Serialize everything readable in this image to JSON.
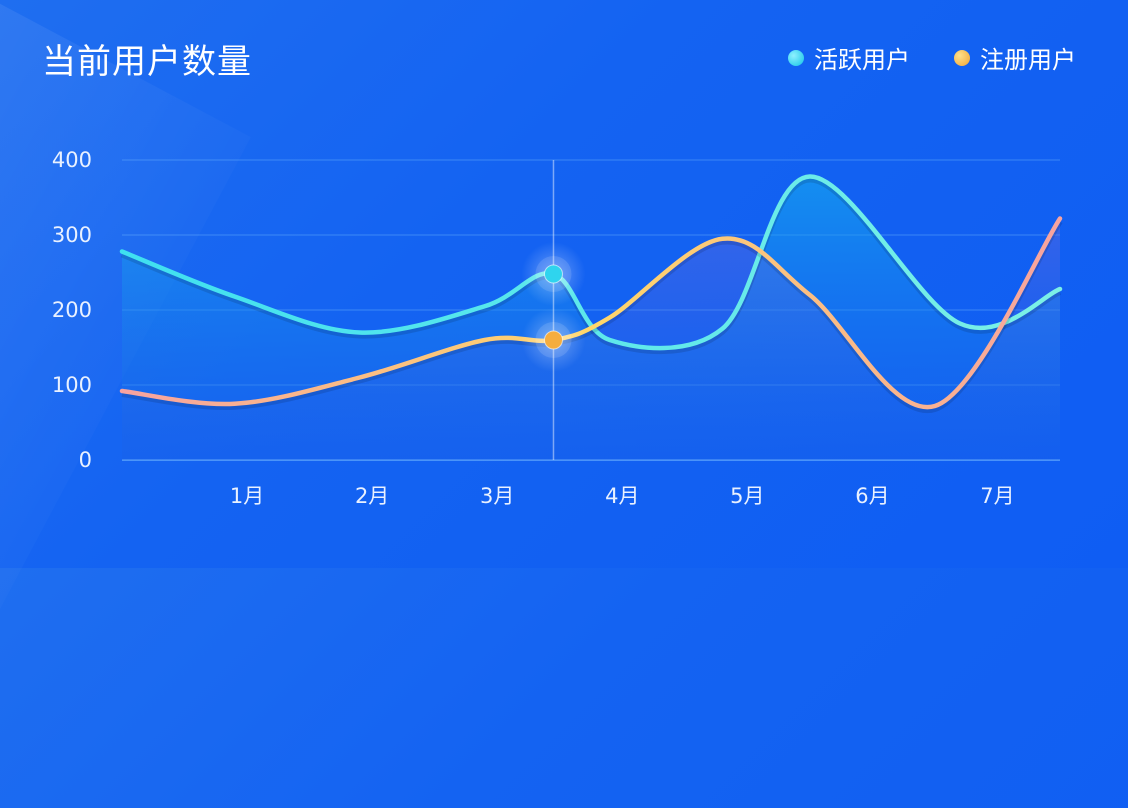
{
  "chart_data": {
    "type": "area",
    "title": "当前用户数量",
    "xlabel": "",
    "ylabel": "",
    "categories": [
      "1月",
      "2月",
      "3月",
      "4月",
      "5月",
      "6月",
      "7月"
    ],
    "yticks": [
      "0",
      "100",
      "200",
      "300",
      "400"
    ],
    "ylim": [
      0,
      400
    ],
    "grid": true,
    "legend_position": "top-right",
    "series": [
      {
        "name": "活跃用户",
        "color": "#22d3ee",
        "x": [
          0.0,
          0.9,
          1.9,
          2.9,
          3.45,
          3.9,
          4.8,
          5.5,
          6.7,
          7.5
        ],
        "y": [
          278,
          218,
          170,
          205,
          248,
          160,
          175,
          378,
          182,
          228
        ]
      },
      {
        "name": "注册用户",
        "color": "#fbbf45",
        "x": [
          0.0,
          0.9,
          1.9,
          2.9,
          3.45,
          3.9,
          4.8,
          5.5,
          6.5,
          7.5
        ],
        "y": [
          92,
          75,
          110,
          160,
          160,
          190,
          295,
          220,
          72,
          322
        ]
      }
    ],
    "highlight": {
      "x": 3.45,
      "label": ""
    }
  }
}
